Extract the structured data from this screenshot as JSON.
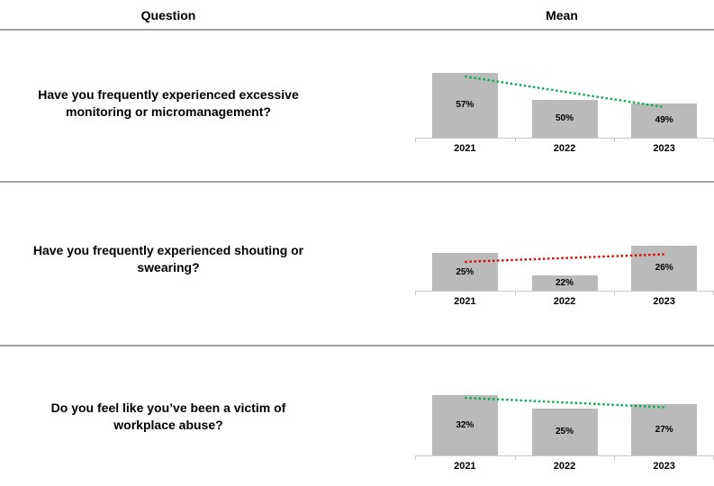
{
  "header": {
    "question_label": "Question",
    "mean_label": "Mean"
  },
  "rows": [
    {
      "question": "Have you frequently experienced excessive monitoring or micromanagement?",
      "question_lines": [
        "Have you frequently experienced excessive",
        "monitoring or micromanagement?"
      ]
    },
    {
      "question": "Have you frequently experienced shouting or swearing?",
      "question_lines": [
        "Have you frequently experienced shouting or",
        "swearing?"
      ]
    },
    {
      "question": "Do you feel like you’ve been a victim of workplace abuse?",
      "question_lines": [
        "Do you feel like you’ve been a victim of",
        "workplace abuse?"
      ]
    }
  ],
  "chart_data": [
    {
      "type": "bar",
      "categories": [
        "2021",
        "2022",
        "2023"
      ],
      "values": [
        57,
        50,
        49
      ],
      "labels": [
        "57%",
        "50%",
        "49%"
      ],
      "ylim": [
        40,
        60
      ],
      "bar_color": "#bababa",
      "trendline": {
        "type": "linear",
        "style": "dotted",
        "color": "#00b050",
        "direction": "down"
      }
    },
    {
      "type": "bar",
      "categories": [
        "2021",
        "2022",
        "2023"
      ],
      "values": [
        25,
        22,
        26
      ],
      "labels": [
        "25%",
        "22%",
        "26%"
      ],
      "ylim": [
        20,
        28
      ],
      "bar_color": "#bababa",
      "trendline": {
        "type": "linear",
        "style": "dotted",
        "color": "#e00000",
        "direction": "up"
      }
    },
    {
      "type": "bar",
      "categories": [
        "2021",
        "2022",
        "2023"
      ],
      "values": [
        32,
        25,
        27
      ],
      "labels": [
        "32%",
        "25%",
        "27%"
      ],
      "ylim": [
        0,
        40
      ],
      "bar_color": "#bababa",
      "trendline": {
        "type": "linear",
        "style": "dotted",
        "color": "#00b050",
        "direction": "down"
      }
    }
  ],
  "colors": {
    "bar": "#bababa",
    "trend_green": "#00b050",
    "trend_red": "#e00000",
    "divider": "#a3a3a3",
    "axis": "#c9c9c9"
  }
}
